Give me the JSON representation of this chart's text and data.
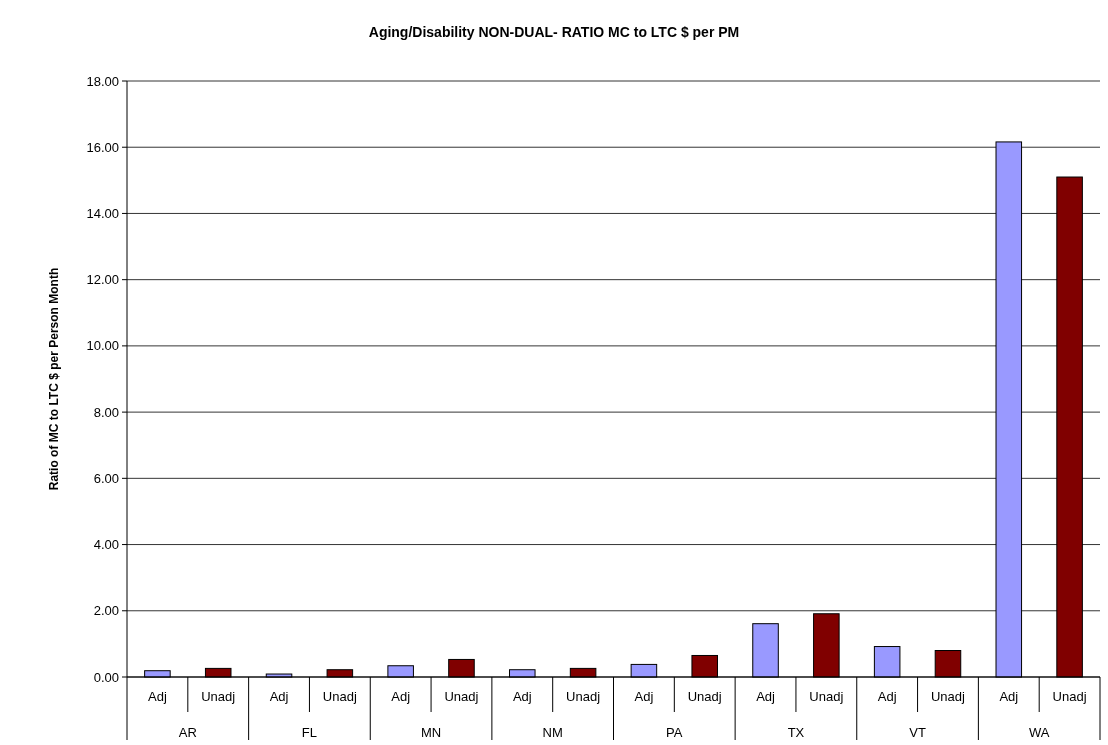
{
  "chart_data": {
    "type": "bar",
    "title": "Aging/Disability NON-DUAL- RATIO MC to LTC $ per PM",
    "ylabel": "Ratio of MC to LTC $ per Person Month",
    "categories": [
      "AR",
      "FL",
      "MN",
      "NM",
      "PA",
      "TX",
      "VT",
      "WA"
    ],
    "series": [
      {
        "name": "Adj",
        "color": "#9999ff",
        "values": [
          0.19,
          0.09,
          0.34,
          0.22,
          0.38,
          1.61,
          0.92,
          16.16
        ]
      },
      {
        "name": "Unadj",
        "color": "#800000",
        "values": [
          0.26,
          0.22,
          0.53,
          0.26,
          0.65,
          1.91,
          0.8,
          15.1
        ]
      }
    ],
    "ylim": [
      0,
      18
    ],
    "yticks": [
      {
        "value": 0,
        "label": "0.00"
      },
      {
        "value": 2,
        "label": "2.00"
      },
      {
        "value": 4,
        "label": "4.00"
      },
      {
        "value": 6,
        "label": "6.00"
      },
      {
        "value": 8,
        "label": "8.00"
      },
      {
        "value": 10,
        "label": "10.00"
      },
      {
        "value": 12,
        "label": "12.00"
      },
      {
        "value": 14,
        "label": "14.00"
      },
      {
        "value": 16,
        "label": "16.00"
      },
      {
        "value": 18,
        "label": "18.00"
      }
    ],
    "grid": "y"
  }
}
